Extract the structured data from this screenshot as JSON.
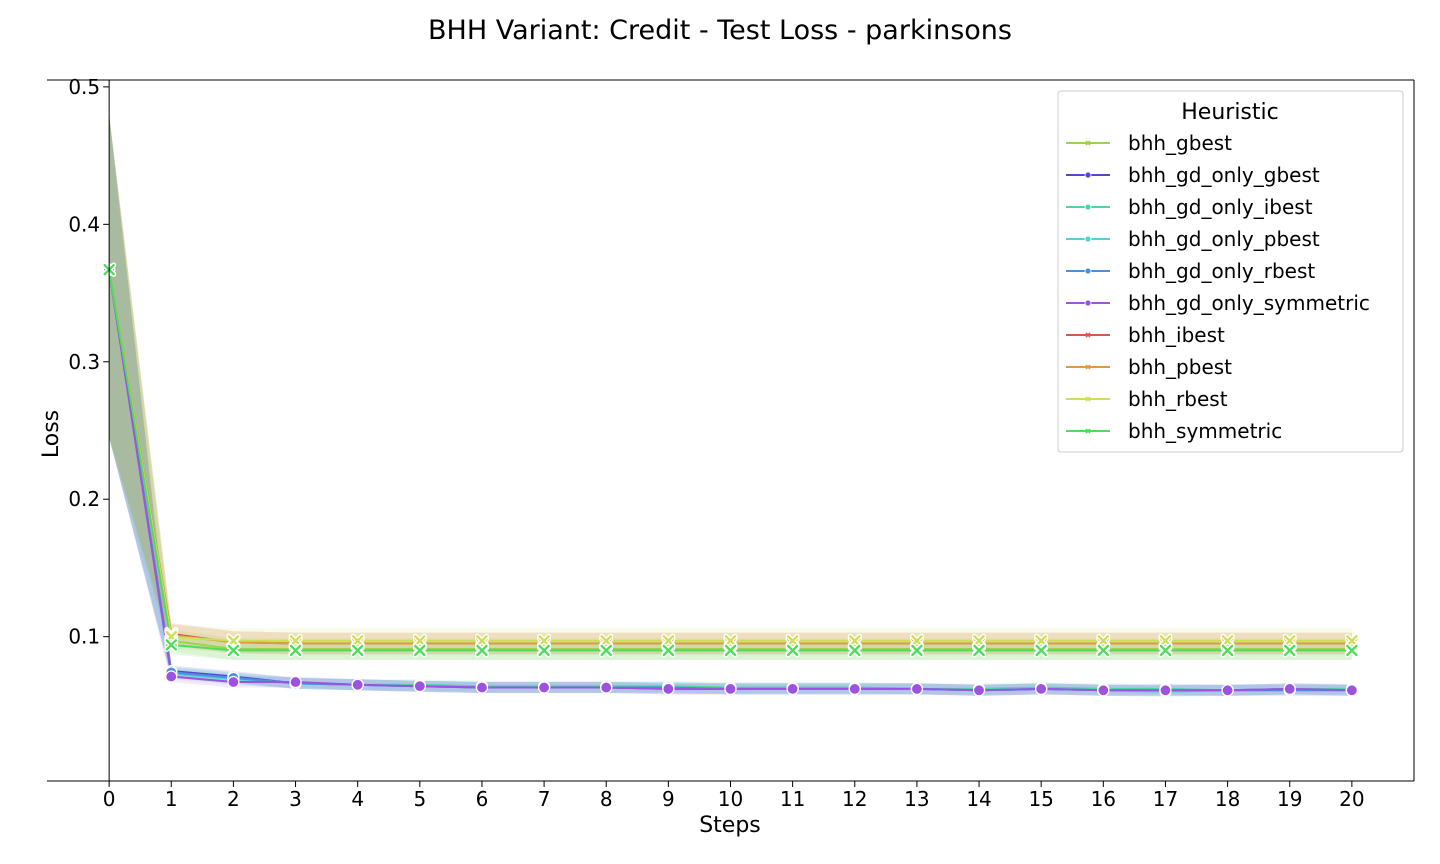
{
  "chart_data": {
    "type": "line",
    "title": "BHH Variant: Credit - Test Loss - parkinsons",
    "xlabel": "Steps",
    "ylabel": "Loss",
    "xlim": [
      -1,
      21
    ],
    "ylim": [
      -0.005,
      0.505
    ],
    "x_ticks": [
      "0",
      "1",
      "2",
      "3",
      "4",
      "5",
      "6",
      "7",
      "8",
      "9",
      "10",
      "11",
      "12",
      "13",
      "14",
      "15",
      "16",
      "17",
      "18",
      "19",
      "20"
    ],
    "y_ticks": [
      "0.1",
      "0.2",
      "0.3",
      "0.4",
      "0.5"
    ],
    "grid": false,
    "legend": {
      "title": "Heuristic",
      "position": "top-right"
    },
    "x": [
      0,
      1,
      2,
      3,
      4,
      5,
      6,
      7,
      8,
      9,
      10,
      11,
      12,
      13,
      14,
      15,
      16,
      17,
      18,
      19,
      20
    ],
    "series": [
      {
        "name": "bhh_gbest",
        "color": "#9bd44e",
        "marker": "x",
        "band": 0.008,
        "values": [
          0.367,
          0.097,
          0.091,
          0.091,
          0.091,
          0.091,
          0.091,
          0.091,
          0.091,
          0.091,
          0.091,
          0.091,
          0.091,
          0.091,
          0.091,
          0.091,
          0.091,
          0.091,
          0.091,
          0.091,
          0.091
        ]
      },
      {
        "name": "bhh_gd_only_gbest",
        "color": "#5446cf",
        "marker": "o",
        "band": 0.004,
        "values": [
          0.367,
          0.075,
          0.071,
          0.066,
          0.065,
          0.064,
          0.063,
          0.063,
          0.063,
          0.062,
          0.062,
          0.062,
          0.062,
          0.062,
          0.061,
          0.062,
          0.061,
          0.061,
          0.061,
          0.062,
          0.061
        ]
      },
      {
        "name": "bhh_gd_only_ibest",
        "color": "#4fd6a0",
        "marker": "o",
        "band": 0.004,
        "values": [
          0.367,
          0.074,
          0.07,
          0.066,
          0.065,
          0.065,
          0.064,
          0.064,
          0.064,
          0.064,
          0.063,
          0.063,
          0.063,
          0.062,
          0.062,
          0.063,
          0.062,
          0.062,
          0.061,
          0.062,
          0.062
        ]
      },
      {
        "name": "bhh_gd_only_pbest",
        "color": "#56cfd6",
        "marker": "o",
        "band": 0.004,
        "values": [
          0.367,
          0.073,
          0.069,
          0.066,
          0.065,
          0.064,
          0.063,
          0.063,
          0.063,
          0.063,
          0.062,
          0.062,
          0.062,
          0.062,
          0.061,
          0.062,
          0.061,
          0.06,
          0.061,
          0.061,
          0.061
        ]
      },
      {
        "name": "bhh_gd_only_rbest",
        "color": "#4a8fe0",
        "marker": "o",
        "band": 0.004,
        "values": [
          0.367,
          0.074,
          0.07,
          0.066,
          0.065,
          0.064,
          0.063,
          0.063,
          0.063,
          0.063,
          0.062,
          0.062,
          0.062,
          0.062,
          0.061,
          0.062,
          0.061,
          0.061,
          0.061,
          0.061,
          0.061
        ]
      },
      {
        "name": "bhh_gd_only_symmetric",
        "color": "#9d53e0",
        "marker": "o",
        "band": 0.004,
        "values": [
          0.367,
          0.071,
          0.067,
          0.067,
          0.065,
          0.064,
          0.063,
          0.063,
          0.063,
          0.062,
          0.062,
          0.062,
          0.062,
          0.062,
          0.061,
          0.062,
          0.061,
          0.061,
          0.061,
          0.062,
          0.061
        ]
      },
      {
        "name": "bhh_ibest",
        "color": "#d65a4a",
        "marker": "x",
        "band": 0.008,
        "values": [
          0.367,
          0.102,
          0.096,
          0.095,
          0.095,
          0.095,
          0.095,
          0.095,
          0.095,
          0.095,
          0.095,
          0.095,
          0.095,
          0.095,
          0.095,
          0.095,
          0.095,
          0.095,
          0.095,
          0.095,
          0.095
        ]
      },
      {
        "name": "bhh_pbest",
        "color": "#dc9a42",
        "marker": "x",
        "band": 0.008,
        "values": [
          0.367,
          0.101,
          0.096,
          0.095,
          0.095,
          0.095,
          0.095,
          0.095,
          0.095,
          0.095,
          0.095,
          0.095,
          0.095,
          0.095,
          0.095,
          0.095,
          0.095,
          0.095,
          0.095,
          0.095,
          0.095
        ]
      },
      {
        "name": "bhh_rbest",
        "color": "#ccdf56",
        "marker": "x",
        "band": 0.009,
        "values": [
          0.367,
          0.1,
          0.097,
          0.097,
          0.097,
          0.097,
          0.097,
          0.097,
          0.097,
          0.097,
          0.097,
          0.097,
          0.097,
          0.097,
          0.097,
          0.097,
          0.097,
          0.097,
          0.097,
          0.097,
          0.097
        ]
      },
      {
        "name": "bhh_symmetric",
        "color": "#4fdc5c",
        "marker": "x",
        "band": 0.007,
        "values": [
          0.367,
          0.094,
          0.09,
          0.09,
          0.09,
          0.09,
          0.09,
          0.09,
          0.09,
          0.09,
          0.09,
          0.09,
          0.09,
          0.09,
          0.09,
          0.09,
          0.09,
          0.09,
          0.09,
          0.09,
          0.09
        ]
      }
    ],
    "start_band": {
      "x": 0,
      "low": 0.245,
      "high": 0.48
    }
  }
}
